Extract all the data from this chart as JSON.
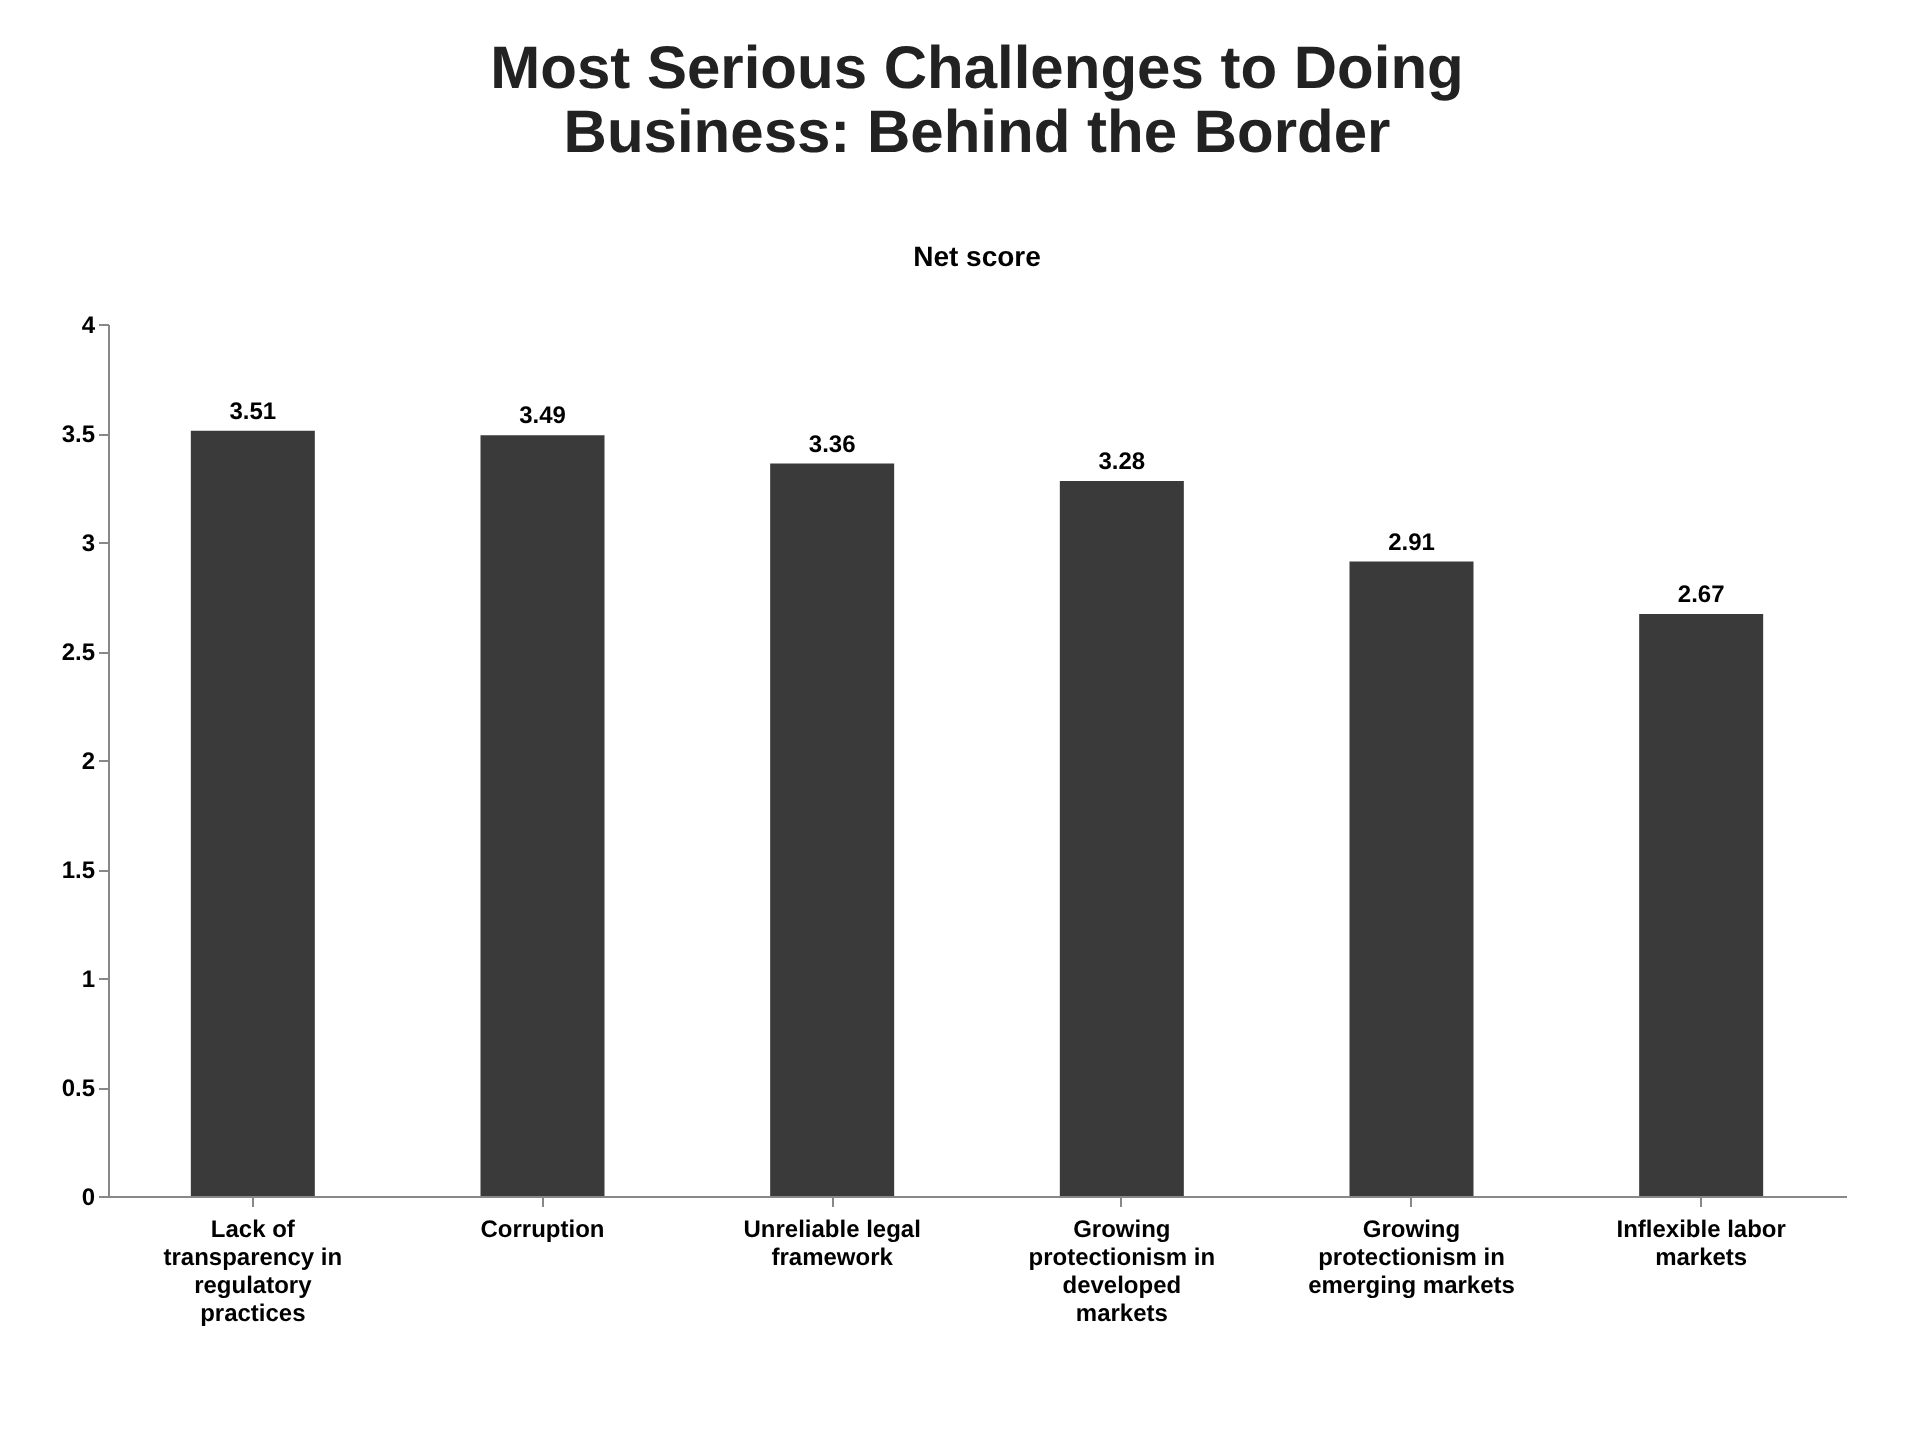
{
  "chart_data": {
    "type": "bar",
    "title": "Most Serious Challenges to Doing Business: Behind the Border",
    "subtitle": "Net score",
    "categories": [
      "Lack of transparency in regulatory practices",
      "Corruption",
      "Unreliable legal framework",
      "Growing protectionism in developed markets",
      "Growing protectionism in emerging markets",
      "Inflexible labor markets"
    ],
    "values": [
      3.51,
      3.49,
      3.36,
      3.28,
      2.91,
      2.67
    ],
    "color": "#3a3a3a",
    "ylim": [
      0,
      4
    ],
    "yticks": [
      0,
      0.5,
      1,
      1.5,
      2,
      2.5,
      3,
      3.5,
      4
    ],
    "data_labels": true,
    "grid": false
  }
}
